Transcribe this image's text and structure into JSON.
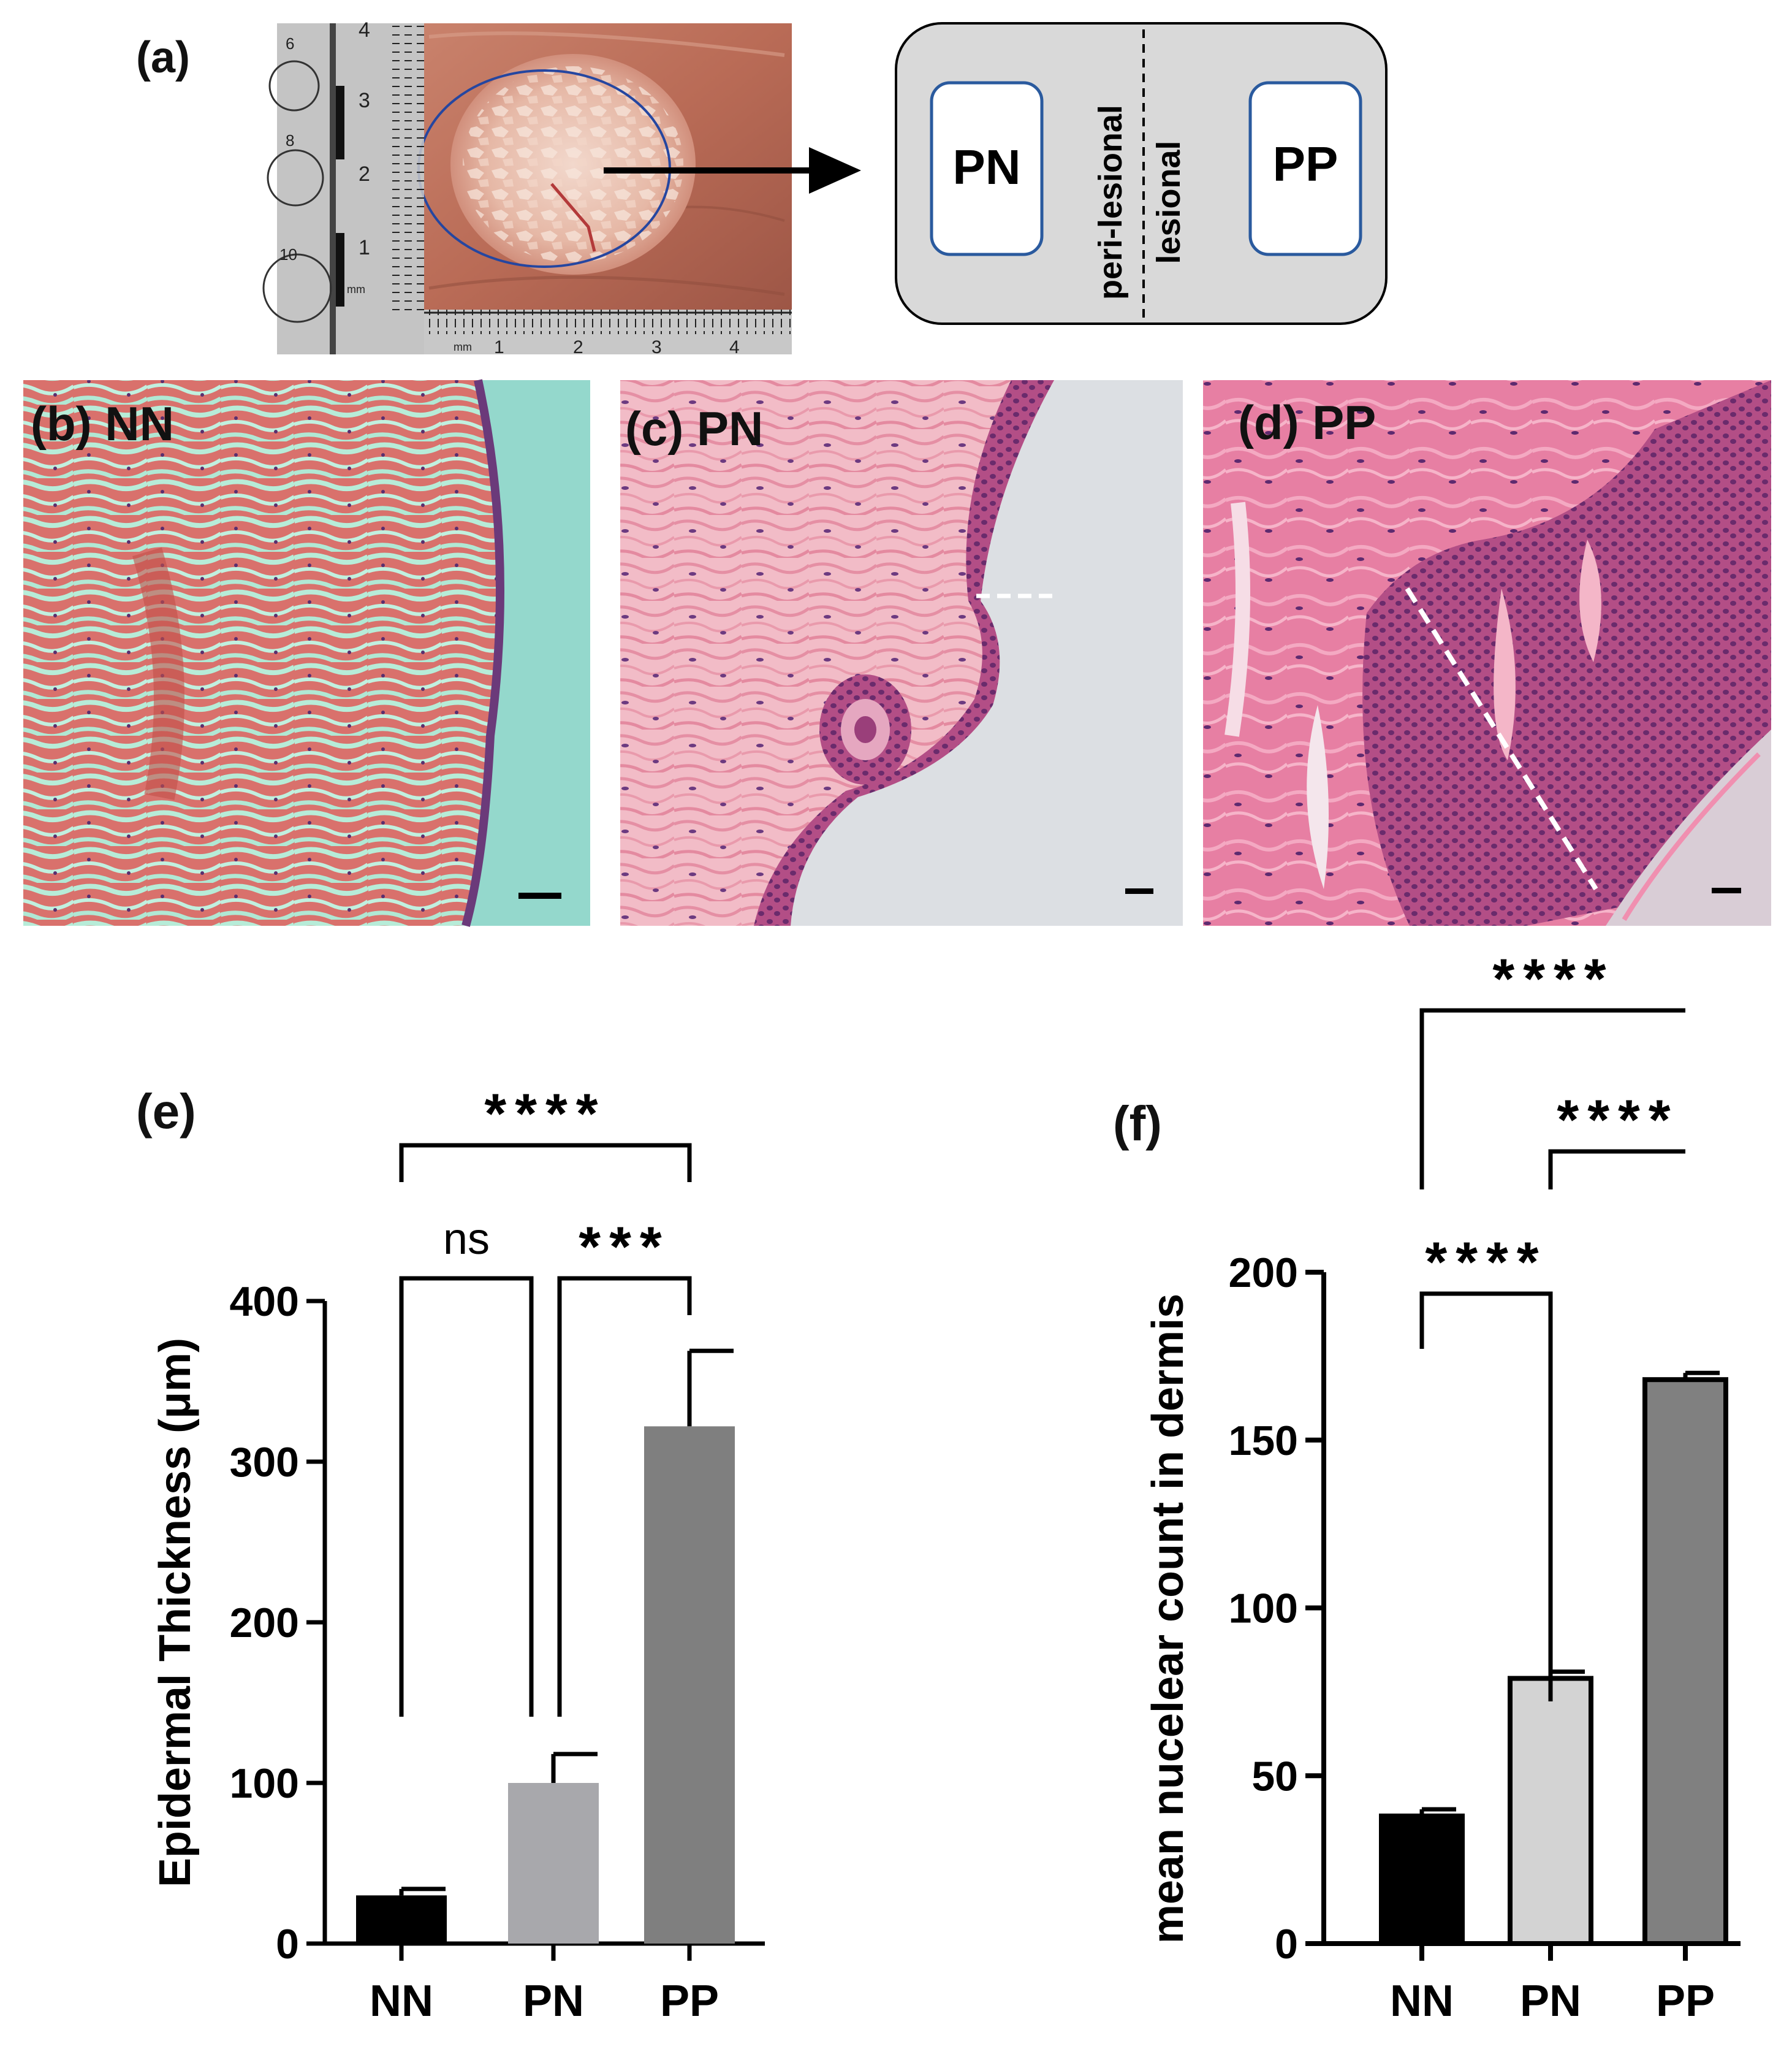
{
  "panels": {
    "a": {
      "label": "(a)",
      "ruler_numbers": [
        "6",
        "8",
        "10",
        "4",
        "3",
        "2",
        "1",
        "mm",
        "mm",
        "1",
        "2",
        "3",
        "4"
      ],
      "diagram": {
        "left_box": "PN",
        "right_box": "PP",
        "left_zone": "peri-lesional",
        "right_zone": "lesional"
      }
    },
    "b": {
      "label": "(b) NN"
    },
    "c": {
      "label": "(c) PN"
    },
    "d": {
      "label": "(d) PP"
    }
  },
  "chart_data": [
    {
      "panel_label": "(e)",
      "type": "bar",
      "categories": [
        "NN",
        "PN",
        "PP"
      ],
      "values": [
        30,
        100,
        322
      ],
      "errors": [
        4,
        18,
        47
      ],
      "ylabel": "Epidermal Thickness (μm)",
      "ylim": [
        0,
        400
      ],
      "yticks": [
        0,
        100,
        200,
        300,
        400
      ],
      "colors": [
        "#000000",
        "#a8a8ac",
        "#7f7f7f"
      ],
      "significance": [
        {
          "from": "NN",
          "to": "PP",
          "label": "****"
        },
        {
          "from": "NN",
          "to": "PN",
          "label": "ns"
        },
        {
          "from": "PN",
          "to": "PP",
          "label": "***"
        }
      ]
    },
    {
      "panel_label": "(f)",
      "type": "bar",
      "categories": [
        "NN",
        "PN",
        "PP"
      ],
      "values": [
        38,
        79,
        168
      ],
      "errors": [
        2,
        2,
        2
      ],
      "ylabel": "mean nucelear count in dermis",
      "ylim": [
        0,
        200
      ],
      "yticks": [
        0,
        50,
        100,
        150,
        200
      ],
      "colors": [
        "#000000",
        "#d3d3d3",
        "#808080"
      ],
      "significance": [
        {
          "from": "NN",
          "to": "PP",
          "label": "****"
        },
        {
          "from": "PN",
          "to": "PP",
          "label": "****"
        },
        {
          "from": "NN",
          "to": "PN",
          "label": "****"
        }
      ]
    }
  ]
}
